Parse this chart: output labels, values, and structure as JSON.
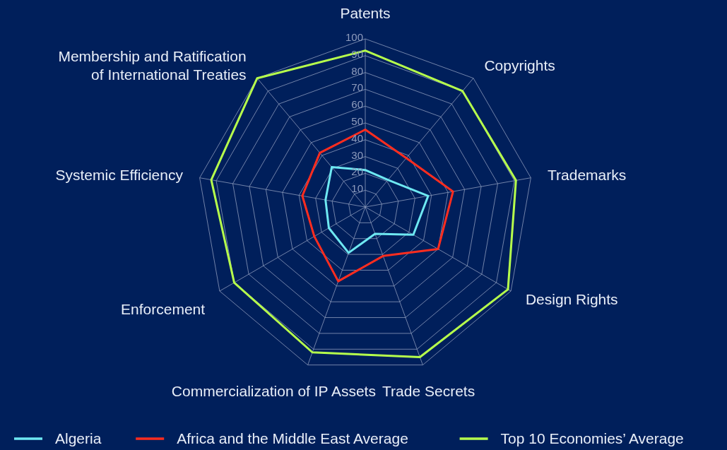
{
  "chart_data": {
    "type": "radar",
    "categories": [
      "Patents",
      "Copyrights",
      "Trademarks",
      "Design Rights",
      "Trade Secrets",
      "Commercialization of IP Assets",
      "Enforcement",
      "Systemic Efficiency",
      "Membership and Ratification of International Treaties"
    ],
    "series": [
      {
        "name": "Algeria",
        "color": "#6ee8f2",
        "values": [
          22,
          21,
          38,
          33,
          17,
          29,
          25,
          24,
          31
        ]
      },
      {
        "name": "Africa and the Middle East Average",
        "color": "#ff2d1f",
        "values": [
          46,
          38,
          53,
          50,
          31,
          47,
          35,
          38,
          42
        ]
      },
      {
        "name": "Top 10 Economies’ Average",
        "color": "#b6ff4c",
        "values": [
          93,
          90,
          91,
          98,
          95,
          92,
          90,
          93,
          100
        ]
      }
    ],
    "ylim": [
      0,
      100
    ],
    "yticks": [
      10,
      20,
      30,
      40,
      50,
      60,
      70,
      80,
      90,
      100
    ],
    "grid": true,
    "legend": "bottom"
  }
}
